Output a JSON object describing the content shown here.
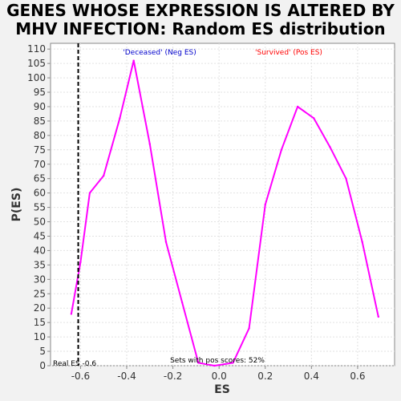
{
  "chart_data": {
    "type": "line",
    "title_line1": "GENES WHOSE EXPRESSION IS ALTERED BY",
    "title_line2": "MHV INFECTION: Random ES distribution",
    "xlabel": "ES",
    "ylabel": "P(ES)",
    "xlim": [
      -0.73,
      0.76
    ],
    "ylim": [
      0,
      112
    ],
    "xticks": [
      -0.6,
      -0.4,
      -0.2,
      0.0,
      0.2,
      0.4,
      0.6
    ],
    "xtick_labels": [
      "-0.6",
      "-0.4",
      "-0.2",
      "0.0",
      "0.2",
      "0.4",
      "0.6"
    ],
    "yticks": [
      0,
      5,
      10,
      15,
      20,
      25,
      30,
      35,
      40,
      45,
      50,
      55,
      60,
      65,
      70,
      75,
      80,
      85,
      90,
      95,
      100,
      105,
      110
    ],
    "ytick_labels": [
      "0",
      "5",
      "10",
      "15",
      "20",
      "25",
      "30",
      "35",
      "40",
      "45",
      "50",
      "55",
      "60",
      "65",
      "70",
      "75",
      "80",
      "85",
      "90",
      "95",
      "100",
      "105",
      "110"
    ],
    "grid": true,
    "series": [
      {
        "name": "P(ES)",
        "color": "#ff00ff",
        "x": [
          -0.64,
          -0.6,
          -0.56,
          -0.5,
          -0.43,
          -0.37,
          -0.3,
          -0.23,
          -0.16,
          -0.09,
          -0.02,
          0.06,
          0.13,
          0.2,
          0.27,
          0.34,
          0.41,
          0.48,
          0.55,
          0.62,
          0.69
        ],
        "y": [
          18,
          36,
          60,
          66,
          86,
          106,
          77,
          43,
          22,
          1,
          0,
          1,
          13,
          56,
          75,
          90,
          86,
          76,
          65,
          43,
          17
        ]
      }
    ],
    "real_es": -0.61,
    "real_es_label": "Real ES -0.6",
    "neg_label": "'Deceased' (Neg ES)",
    "pos_label": "'Survived' (Pos ES)",
    "pos_scores_label": "Sets with pos scores: 52%",
    "neg_color": "#0000cc",
    "pos_color": "#ff0000"
  }
}
